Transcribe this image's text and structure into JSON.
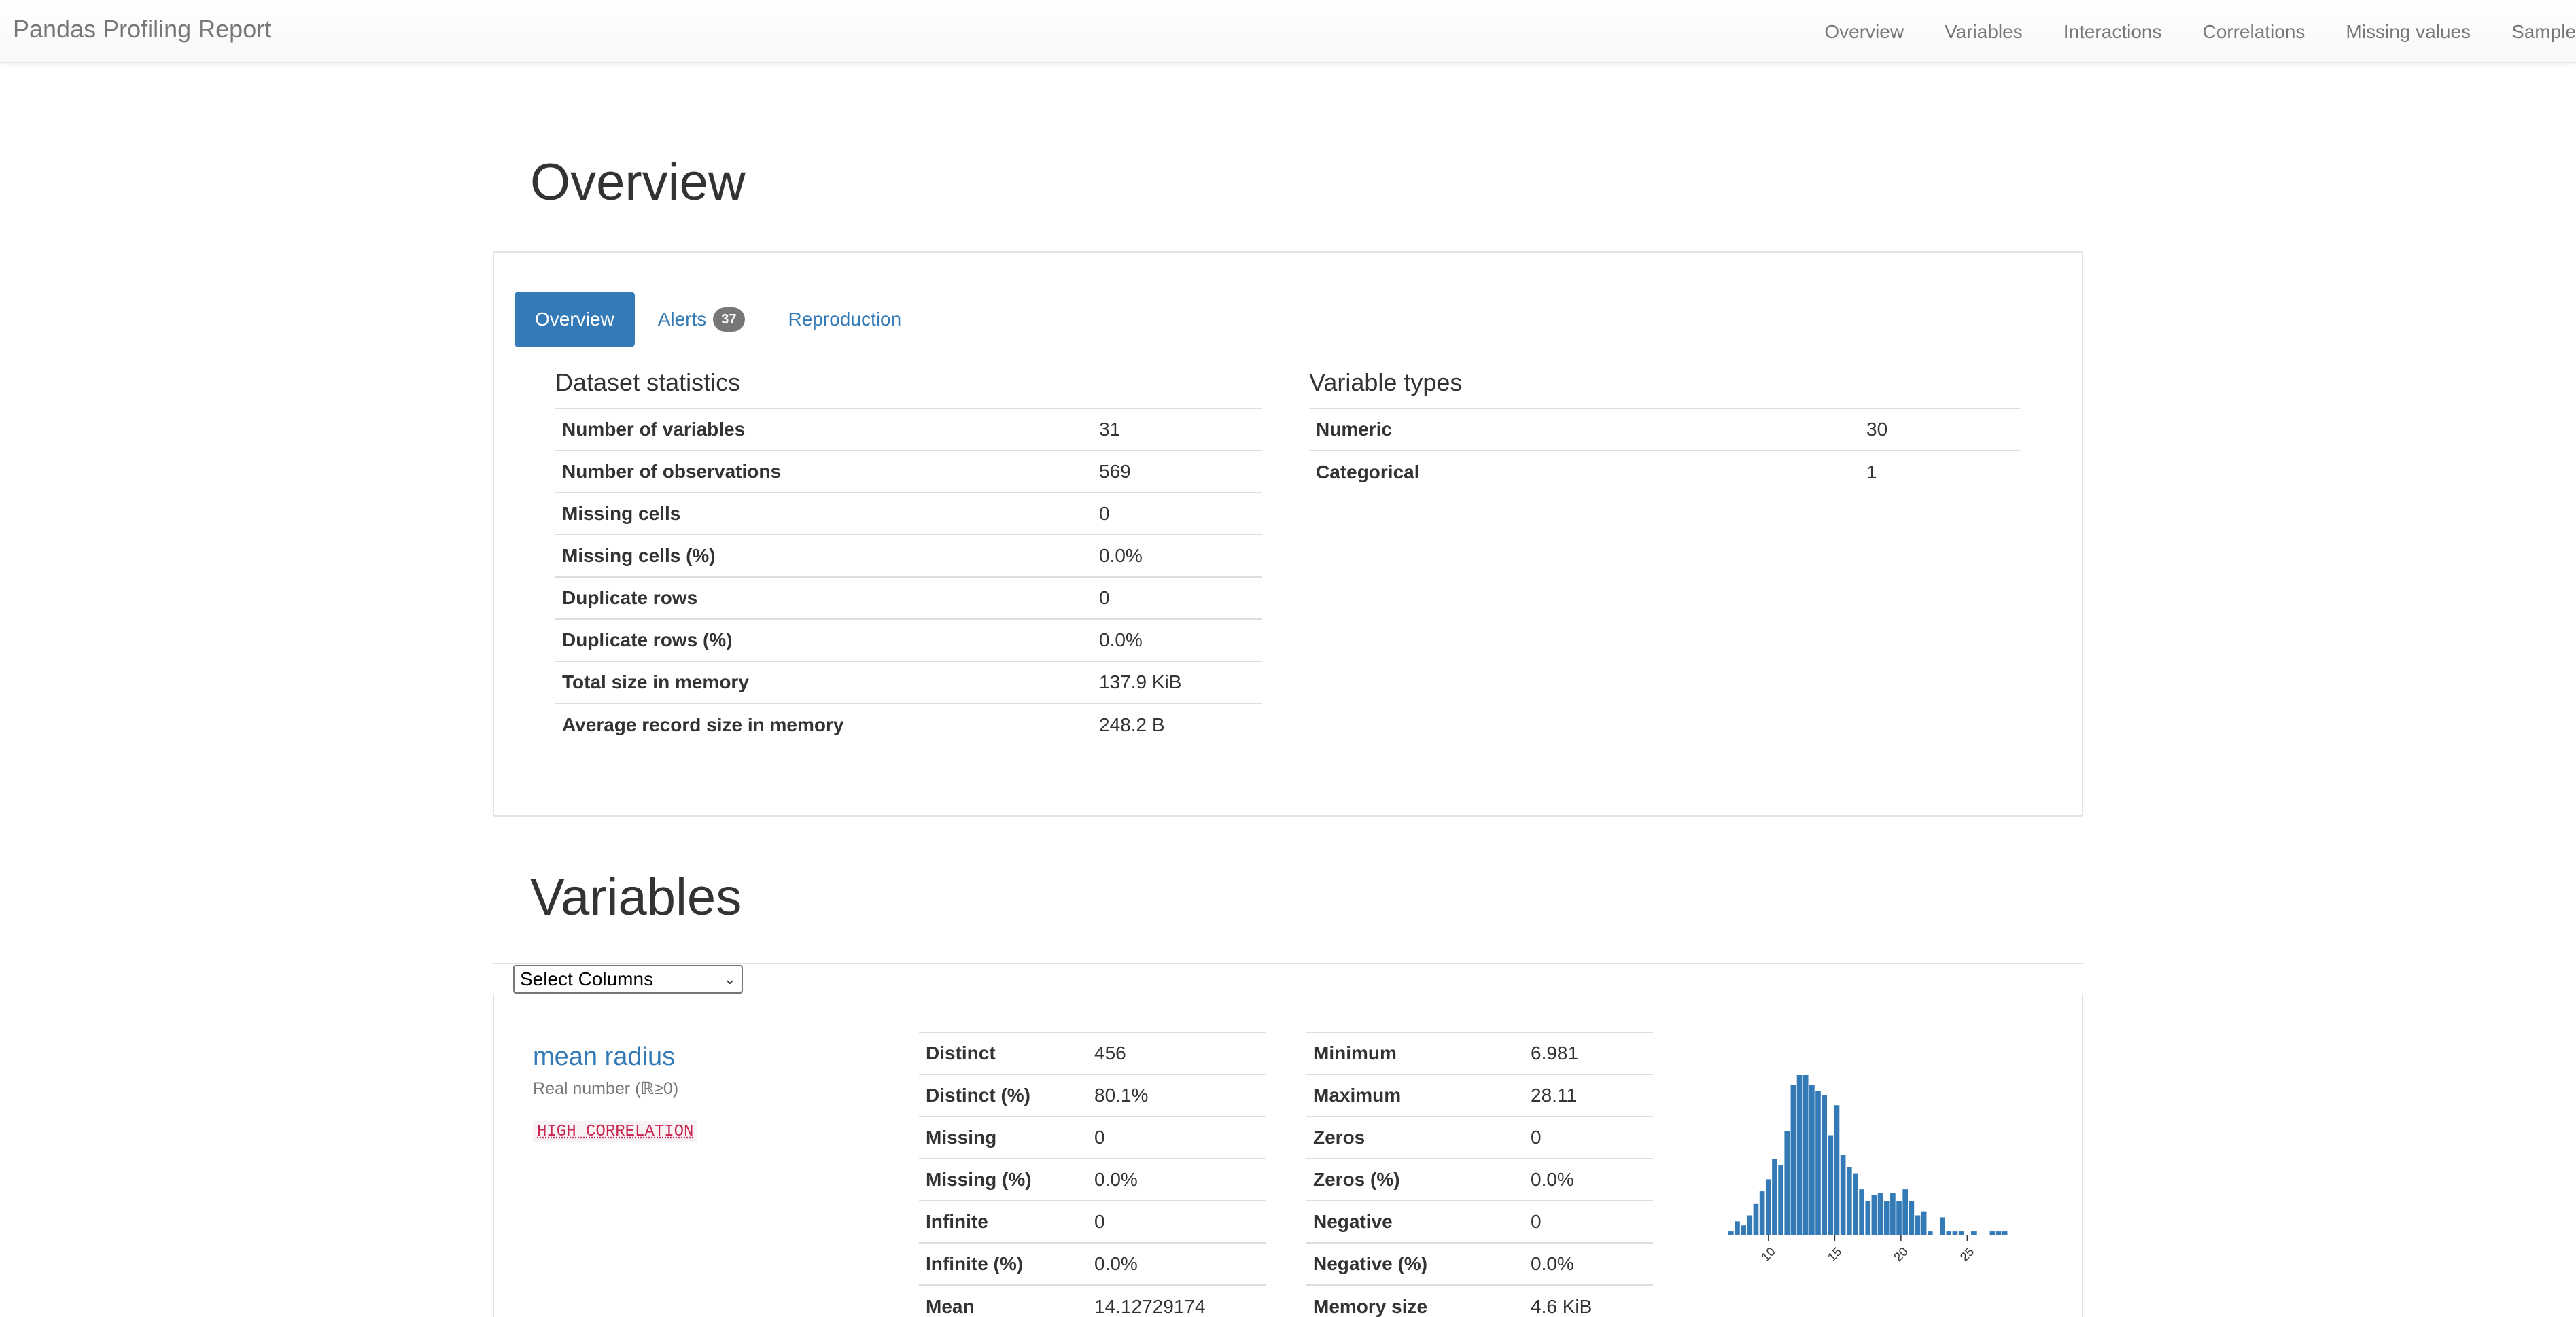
{
  "navbar": {
    "brand": "Pandas Profiling Report",
    "links": [
      "Overview",
      "Variables",
      "Interactions",
      "Correlations",
      "Missing values",
      "Sample"
    ]
  },
  "overview": {
    "heading": "Overview",
    "tabs": [
      {
        "label": "Overview",
        "active": true
      },
      {
        "label": "Alerts",
        "badge": "37"
      },
      {
        "label": "Reproduction"
      }
    ],
    "dataset_statistics": {
      "title": "Dataset statistics",
      "rows": [
        [
          "Number of variables",
          "31"
        ],
        [
          "Number of observations",
          "569"
        ],
        [
          "Missing cells",
          "0"
        ],
        [
          "Missing cells (%)",
          "0.0%"
        ],
        [
          "Duplicate rows",
          "0"
        ],
        [
          "Duplicate rows (%)",
          "0.0%"
        ],
        [
          "Total size in memory",
          "137.9 KiB"
        ],
        [
          "Average record size in memory",
          "248.2 B"
        ]
      ]
    },
    "variable_types": {
      "title": "Variable types",
      "rows": [
        [
          "Numeric",
          "30"
        ],
        [
          "Categorical",
          "1"
        ]
      ]
    }
  },
  "variables": {
    "heading": "Variables",
    "select_label": "Select Columns",
    "variable": {
      "name": "mean radius",
      "type": "Real number (ℝ≥0)",
      "alert": "HIGH CORRELATION",
      "stats_left": [
        [
          "Distinct",
          "456"
        ],
        [
          "Distinct (%)",
          "80.1%"
        ],
        [
          "Missing",
          "0"
        ],
        [
          "Missing (%)",
          "0.0%"
        ],
        [
          "Infinite",
          "0"
        ],
        [
          "Infinite (%)",
          "0.0%"
        ],
        [
          "Mean",
          "14.12729174"
        ]
      ],
      "stats_right": [
        [
          "Minimum",
          "6.981"
        ],
        [
          "Maximum",
          "28.11"
        ],
        [
          "Zeros",
          "0"
        ],
        [
          "Zeros (%)",
          "0.0%"
        ],
        [
          "Negative",
          "0"
        ],
        [
          "Negative (%)",
          "0.0%"
        ],
        [
          "Memory size",
          "4.6 KiB"
        ]
      ]
    }
  },
  "colors": {
    "accent": "#337ab7",
    "alert_text": "#c7254e",
    "alert_bg": "#f9f2f4",
    "bar": "#337ab7"
  },
  "chart_data": {
    "type": "bar",
    "title": "",
    "xlabel": "",
    "ylabel": "",
    "x_ticks": [
      "10",
      "15",
      "20",
      "25"
    ],
    "xlim": [
      6.981,
      28.11
    ],
    "bin_heights": [
      2,
      7,
      5,
      10,
      16,
      22,
      28,
      38,
      35,
      52,
      75,
      80,
      80,
      75,
      72,
      70,
      50,
      65,
      40,
      34,
      31,
      23,
      17,
      20,
      21,
      17,
      21,
      17,
      23,
      17,
      10,
      12,
      2,
      0,
      9,
      2,
      2,
      2,
      0,
      2,
      0,
      0,
      2,
      2,
      2
    ]
  }
}
